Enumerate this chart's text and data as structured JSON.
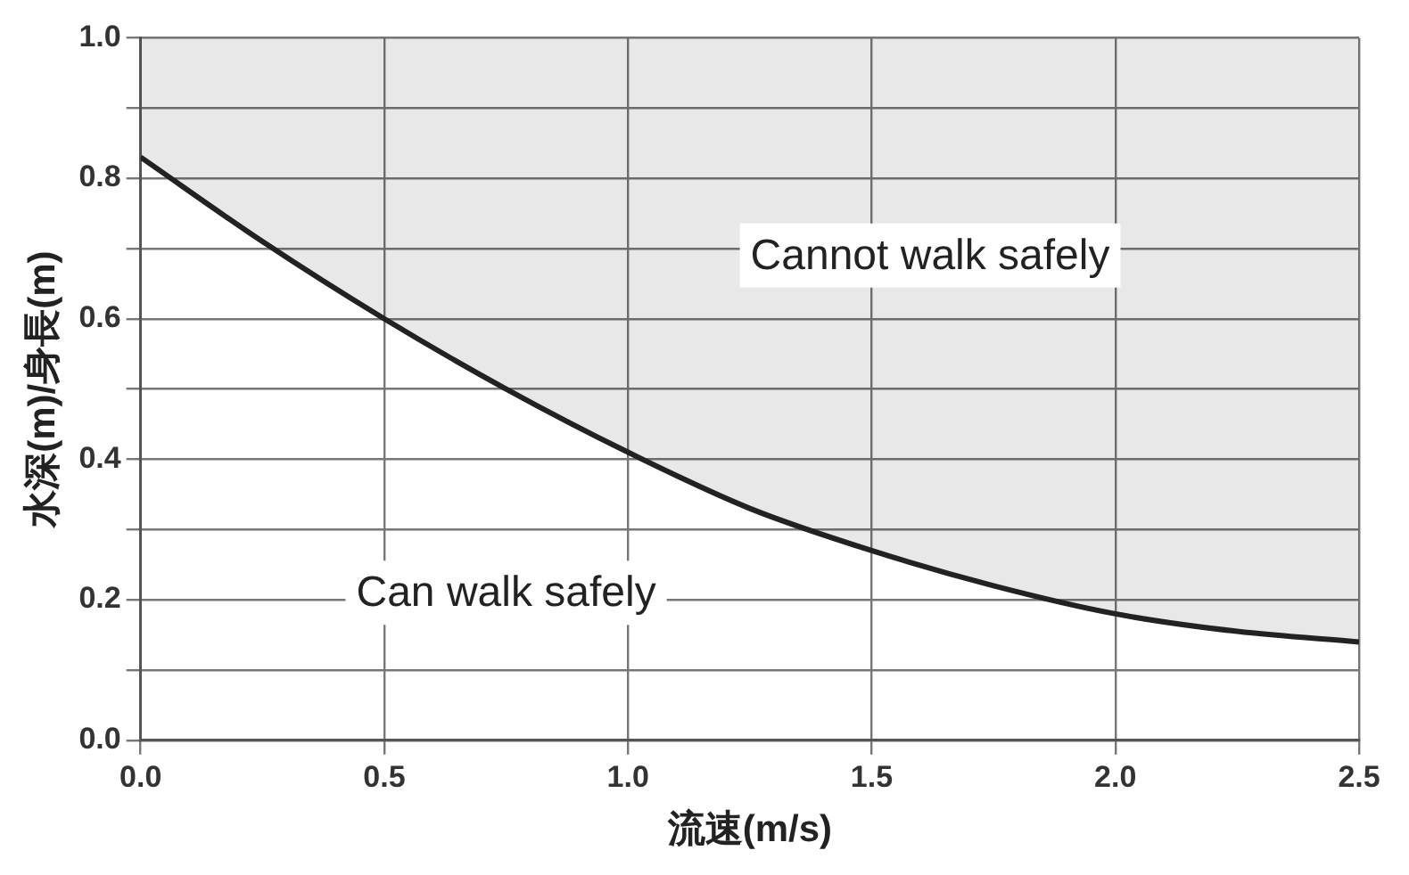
{
  "chart_data": {
    "type": "line",
    "xlabel": "流速(m/s)",
    "ylabel": "水深(m)/身長(m)",
    "series": [
      {
        "color": "#222222",
        "x": [
          0,
          0.25,
          0.5,
          0.75,
          1.0,
          1.25,
          1.5,
          1.75,
          2.0,
          2.25,
          2.5
        ],
        "values": [
          0.83,
          0.71,
          0.6,
          0.5,
          0.41,
          0.33,
          0.27,
          0.22,
          0.18,
          0.155,
          0.14
        ],
        "lower": [
          0.83,
          0.71,
          0.6,
          0.5,
          0.41,
          0.33,
          0.27,
          0.22,
          0.18,
          0.155,
          0.14
        ],
        "upper": [
          1,
          1,
          1,
          1,
          1,
          1,
          1,
          1,
          1,
          1,
          1
        ]
      }
    ],
    "xlim": [
      0,
      2.5
    ],
    "xticks": [
      {
        "value": 0,
        "label": "0.0"
      },
      {
        "value": 0.5,
        "label": "0.5"
      },
      {
        "value": 1,
        "label": "1.0"
      },
      {
        "value": 1.5,
        "label": "1.5"
      },
      {
        "value": 2,
        "label": "2.0"
      },
      {
        "value": 2.5,
        "label": "2.5"
      }
    ],
    "ylim": [
      0,
      1
    ],
    "yticks": [
      {
        "value": 0,
        "label": "0.0"
      },
      {
        "value": 0.1,
        "label": null
      },
      {
        "value": 0.2,
        "label": "0.2"
      },
      {
        "value": 0.3,
        "label": null
      },
      {
        "value": 0.4,
        "label": "0.4"
      },
      {
        "value": 0.5,
        "label": null
      },
      {
        "value": 0.6,
        "label": "0.6"
      },
      {
        "value": 0.7,
        "label": null
      },
      {
        "value": 0.8,
        "label": "0.8"
      },
      {
        "value": 0.9,
        "label": null
      },
      {
        "value": 1,
        "label": "1.0"
      }
    ],
    "grid": true,
    "legend": false,
    "marker": "none",
    "line_style": "solid",
    "annotations": [
      "Cannot walk safely",
      "Can walk safely"
    ]
  }
}
